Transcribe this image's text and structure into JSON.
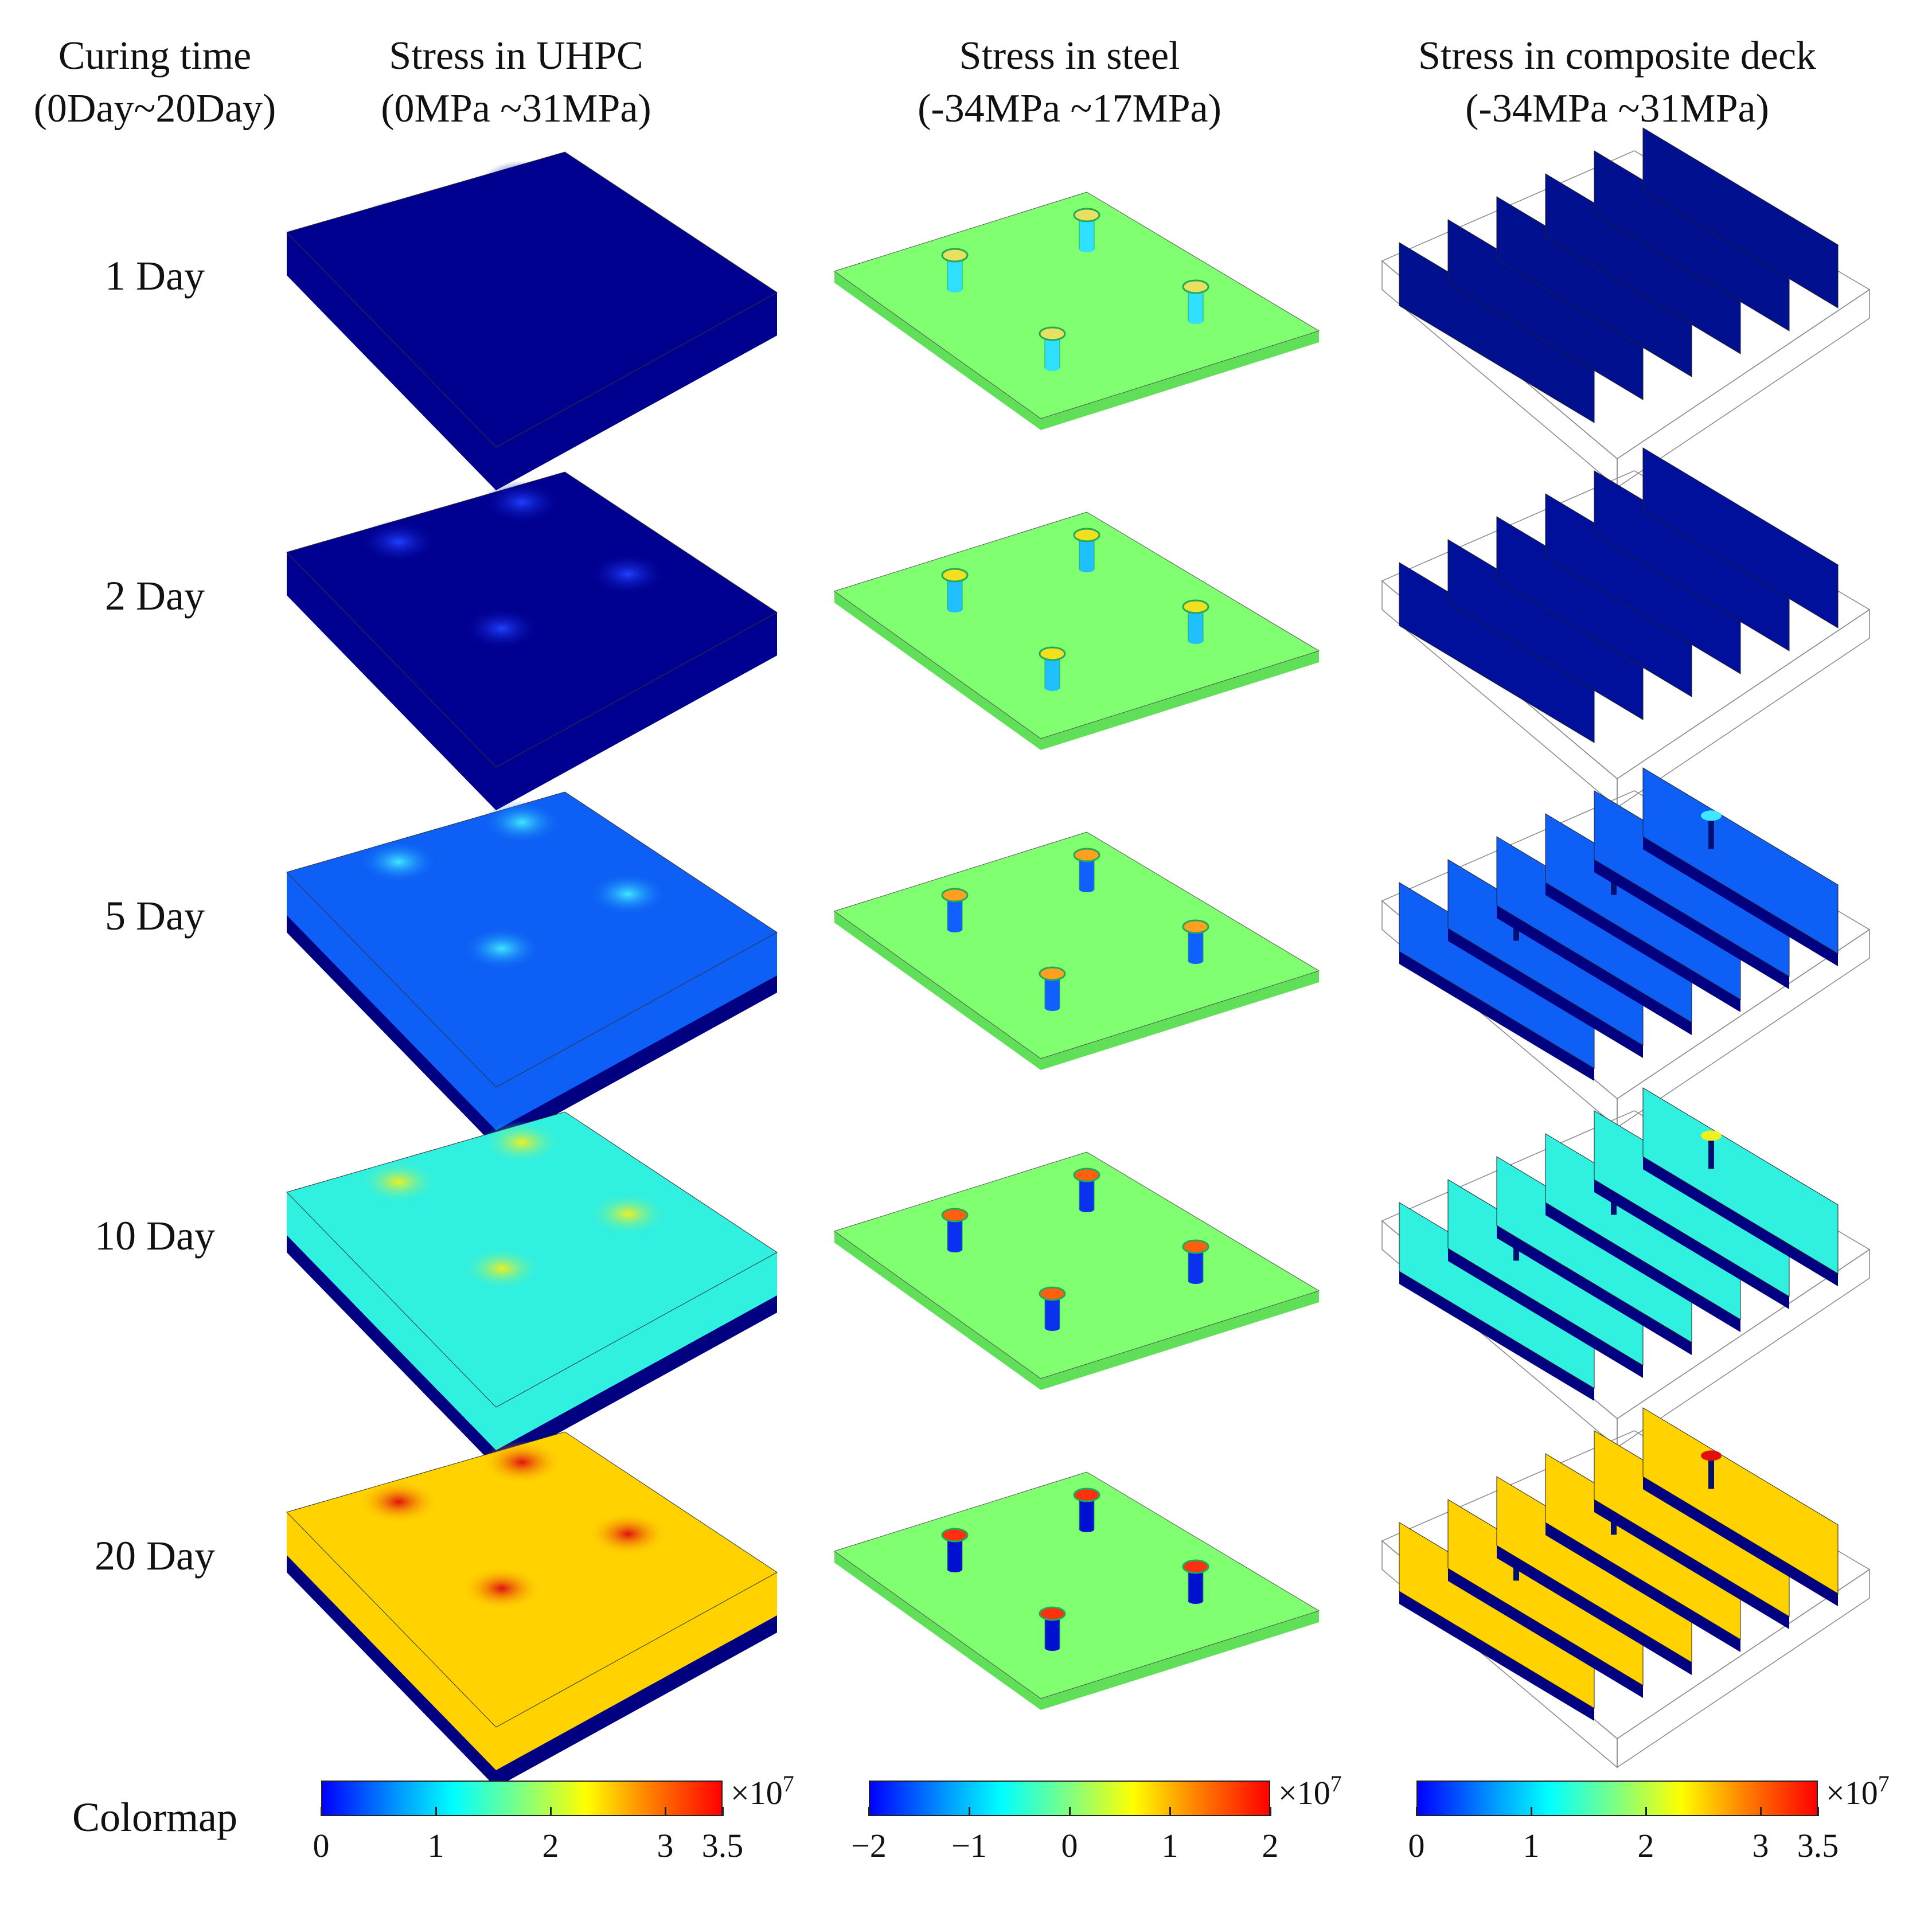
{
  "headers": {
    "curing": {
      "line1": "Curing time",
      "line2": "(0Day~20Day)"
    },
    "uhpc": {
      "line1": "Stress in UHPC",
      "line2": "(0MPa ~31MPa)"
    },
    "steel": {
      "line1": "Stress in steel",
      "line2": "(-34MPa ~17MPa)"
    },
    "composite": {
      "line1": "Stress in composite deck",
      "line2": "(-34MPa ~31MPa)"
    }
  },
  "rows": [
    {
      "label": "1 Day",
      "uhpc_top": "#00008f",
      "uhpc_spot": "#00008f",
      "uhpc_layer": "#00008f",
      "steel_cap": "#e8e060",
      "steel_stud": "#30e0ff",
      "comp_face": "#00108f",
      "comp_spot": "#00108f"
    },
    {
      "label": "2 Day",
      "uhpc_top": "#000090",
      "uhpc_spot": "#2040ff",
      "uhpc_layer": "#000090",
      "steel_cap": "#f0e020",
      "steel_stud": "#20c0ff",
      "comp_face": "#00109a",
      "comp_spot": "#2040ff"
    },
    {
      "label": "5 Day",
      "uhpc_top": "#0d5ff5",
      "uhpc_spot": "#40e8ff",
      "uhpc_layer": "#000080",
      "steel_cap": "#ffa020",
      "steel_stud": "#1060ff",
      "comp_face": "#0d5ff5",
      "comp_spot": "#40e8ff"
    },
    {
      "label": "10 Day",
      "uhpc_top": "#30f0e0",
      "uhpc_spot": "#f0f020",
      "uhpc_layer": "#000080",
      "steel_cap": "#ff6010",
      "steel_stud": "#0a30f0",
      "comp_face": "#30f0e0",
      "comp_spot": "#f0f020"
    },
    {
      "label": "20 Day",
      "uhpc_top": "#ffd200",
      "uhpc_spot": "#e01010",
      "uhpc_layer": "#000080",
      "steel_cap": "#ff3010",
      "steel_stud": "#0010d0",
      "comp_face": "#ffd200",
      "comp_spot": "#e01010"
    }
  ],
  "colors": {
    "steel_plate": "#80ff70",
    "steel_plate_side": "#60e058"
  },
  "colormap": {
    "label": "Colormap",
    "exponent_base": "×10",
    "exponent_power": "7",
    "uhpc": {
      "ticks": [
        "0",
        "1",
        "2",
        "3",
        "3.5"
      ],
      "values": [
        0,
        1,
        2,
        3,
        3.5
      ],
      "min": 0,
      "max": 3.5
    },
    "steel": {
      "ticks": [
        "−2",
        "−1",
        "0",
        "1",
        "2"
      ],
      "values": [
        -2,
        -1,
        0,
        1,
        2
      ],
      "min": -2,
      "max": 2
    },
    "composite": {
      "ticks": [
        "0",
        "1",
        "2",
        "3",
        "3.5"
      ],
      "values": [
        0,
        1,
        2,
        3,
        3.5
      ],
      "min": 0,
      "max": 3.5
    }
  }
}
